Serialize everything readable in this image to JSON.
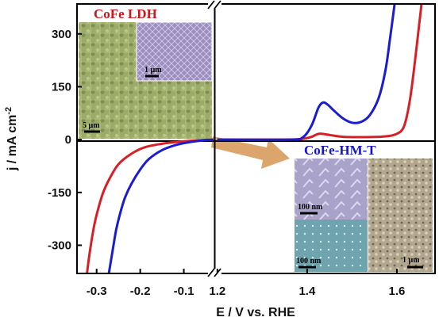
{
  "chart_data": {
    "type": "line",
    "xlabel": "E / V vs. RHE",
    "ylabel": "j / mA cm",
    "ylabel_superscript": "-2",
    "ylim": [
      -380,
      385
    ],
    "grid": false,
    "yticks": [
      "300",
      "150",
      "0",
      "-150",
      "-300"
    ],
    "ytick_values": [
      300,
      150,
      0,
      -150,
      -300
    ],
    "panels": [
      {
        "side": "left",
        "xlim": [
          -0.345,
          -0.03
        ],
        "xticks": [
          "-0.3",
          "-0.2",
          "-0.1"
        ],
        "xtick_values": [
          -0.3,
          -0.2,
          -0.1
        ],
        "label": "CoFe LDH",
        "inset_scales": [
          "1 µm",
          "5 µm"
        ],
        "series": [
          {
            "color": "#d91f26",
            "points": [
              [
                -0.03,
                0
              ],
              [
                -0.07,
                -2
              ],
              [
                -0.11,
                -6
              ],
              [
                -0.15,
                -12
              ],
              [
                -0.19,
                -22
              ],
              [
                -0.22,
                -40
              ],
              [
                -0.25,
                -70
              ],
              [
                -0.27,
                -110
              ],
              [
                -0.285,
                -150
              ],
              [
                -0.295,
                -190
              ],
              [
                -0.305,
                -240
              ],
              [
                -0.312,
                -290
              ],
              [
                -0.318,
                -340
              ],
              [
                -0.322,
                -380
              ]
            ]
          },
          {
            "color": "#1b1bd0",
            "points": [
              [
                -0.03,
                0
              ],
              [
                -0.06,
                -3
              ],
              [
                -0.09,
                -8
              ],
              [
                -0.12,
                -16
              ],
              [
                -0.15,
                -30
              ],
              [
                -0.18,
                -55
              ],
              [
                -0.2,
                -85
              ],
              [
                -0.22,
                -125
              ],
              [
                -0.235,
                -165
              ],
              [
                -0.245,
                -205
              ],
              [
                -0.255,
                -255
              ],
              [
                -0.262,
                -305
              ],
              [
                -0.268,
                -350
              ],
              [
                -0.272,
                -380
              ]
            ]
          }
        ]
      },
      {
        "side": "right",
        "xlim": [
          1.195,
          1.685
        ],
        "xticks": [
          "1.2",
          "1.4",
          "1.6"
        ],
        "xtick_values": [
          1.2,
          1.4,
          1.6
        ],
        "label": "CoFe-HM-T",
        "inset_scales": [
          "100 nm",
          "100 nm",
          "1 µm"
        ],
        "series": [
          {
            "color": "#d91f26",
            "points": [
              [
                1.2,
                0
              ],
              [
                1.35,
                0
              ],
              [
                1.39,
                2
              ],
              [
                1.41,
                8
              ],
              [
                1.42,
                14
              ],
              [
                1.43,
                17
              ],
              [
                1.45,
                13
              ],
              [
                1.48,
                8
              ],
              [
                1.52,
                7
              ],
              [
                1.56,
                8
              ],
              [
                1.59,
                12
              ],
              [
                1.61,
                25
              ],
              [
                1.62,
                55
              ],
              [
                1.63,
                120
              ],
              [
                1.64,
                220
              ],
              [
                1.65,
                330
              ],
              [
                1.655,
                385
              ]
            ]
          },
          {
            "color": "#1b1bd0",
            "points": [
              [
                1.2,
                0
              ],
              [
                1.36,
                0
              ],
              [
                1.39,
                6
              ],
              [
                1.41,
                40
              ],
              [
                1.425,
                90
              ],
              [
                1.435,
                105
              ],
              [
                1.445,
                100
              ],
              [
                1.46,
                82
              ],
              [
                1.48,
                60
              ],
              [
                1.5,
                48
              ],
              [
                1.52,
                50
              ],
              [
                1.54,
                70
              ],
              [
                1.56,
                120
              ],
              [
                1.575,
                200
              ],
              [
                1.585,
                290
              ],
              [
                1.595,
                385
              ]
            ]
          }
        ]
      }
    ]
  }
}
